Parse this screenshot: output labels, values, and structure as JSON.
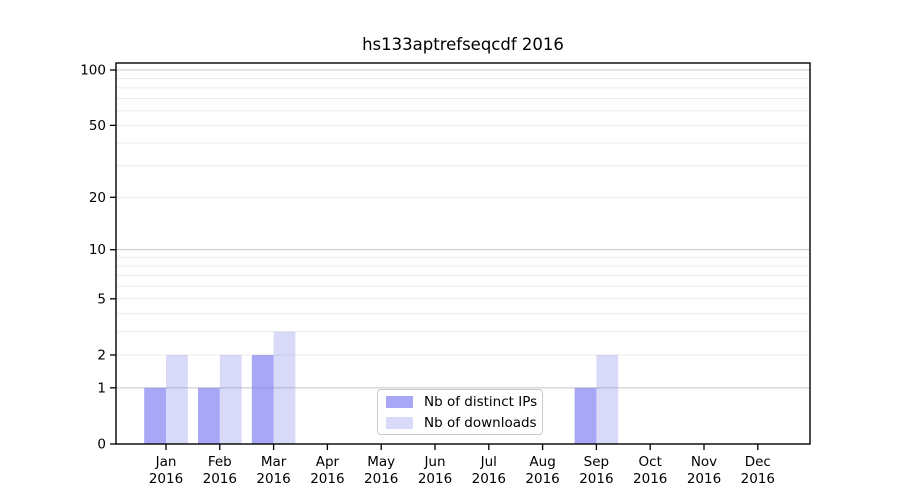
{
  "chart_data": {
    "type": "bar",
    "title": "hs133aptrefseqcdf 2016",
    "categories": [
      {
        "month": "Jan",
        "year": "2016"
      },
      {
        "month": "Feb",
        "year": "2016"
      },
      {
        "month": "Mar",
        "year": "2016"
      },
      {
        "month": "Apr",
        "year": "2016"
      },
      {
        "month": "May",
        "year": "2016"
      },
      {
        "month": "Jun",
        "year": "2016"
      },
      {
        "month": "Jul",
        "year": "2016"
      },
      {
        "month": "Aug",
        "year": "2016"
      },
      {
        "month": "Sep",
        "year": "2016"
      },
      {
        "month": "Oct",
        "year": "2016"
      },
      {
        "month": "Nov",
        "year": "2016"
      },
      {
        "month": "Dec",
        "year": "2016"
      }
    ],
    "series": [
      {
        "name": "Nb of distinct IPs",
        "color": "rgba(128,128,240,0.69)",
        "values": [
          1,
          1,
          2,
          0,
          0,
          0,
          0,
          0,
          1,
          0,
          0,
          0
        ]
      },
      {
        "name": "Nb of downloads",
        "color": "rgba(128,128,240,0.30)",
        "values": [
          2,
          2,
          3,
          0,
          0,
          0,
          0,
          0,
          2,
          0,
          0,
          0
        ]
      }
    ],
    "y_axis": {
      "scale": "log1p",
      "ylim": [
        0,
        100
      ],
      "tick_values": [
        0,
        1,
        2,
        5,
        10,
        20,
        50,
        100
      ],
      "tick_labels": [
        "0",
        "1",
        "2",
        "5",
        "10",
        "20",
        "50",
        "100"
      ],
      "major_gridlines": [
        1,
        10,
        100
      ],
      "minor_gridlines": [
        2,
        3,
        4,
        5,
        6,
        7,
        8,
        9,
        20,
        30,
        40,
        50,
        60,
        70,
        80,
        90
      ]
    },
    "colors": {
      "major_grid": "#c4c4c4",
      "minor_grid": "#ebebeb",
      "spine": "#000000",
      "text": "#000000"
    },
    "legend_position": "lower center"
  }
}
